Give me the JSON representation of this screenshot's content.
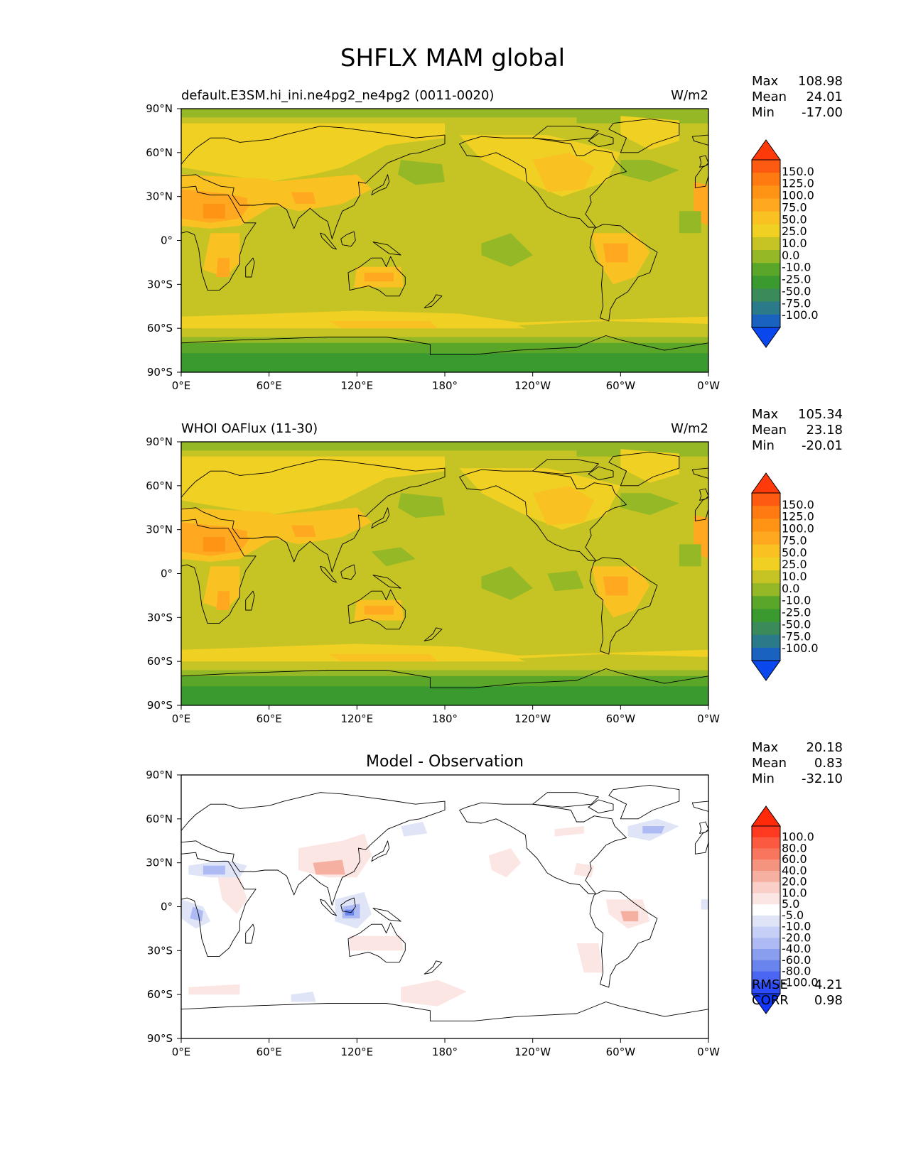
{
  "figure": {
    "title": "SHFLX MAM global",
    "lat_ticks": [
      "90°N",
      "60°N",
      "30°N",
      "0°",
      "30°S",
      "60°S",
      "90°S"
    ],
    "lon_ticks": [
      "0°E",
      "60°E",
      "120°E",
      "180°",
      "120°W",
      "60°W",
      "0°W"
    ]
  },
  "panels": [
    {
      "id": "test",
      "left_title": "default.E3SM.hi_ini.ne4pg2_ne4pg2 (0011-0020)",
      "center_title": "",
      "units": "W/m2",
      "stats": [
        {
          "label": "Max",
          "value": "108.98"
        },
        {
          "label": "Mean",
          "value": "24.01"
        },
        {
          "label": "Min",
          "value": "-17.00"
        }
      ],
      "colorbar": {
        "labels": [
          "150.0",
          "125.0",
          "100.0",
          "75.0",
          "50.0",
          "25.0",
          "10.0",
          "0.0",
          "-10.0",
          "-25.0",
          "-50.0",
          "-75.0",
          "-100.0"
        ],
        "colors": [
          "#ff3a0a",
          "#ff5a12",
          "#ff7a10",
          "#ff9414",
          "#ffa820",
          "#f9c222",
          "#f0d023",
          "#c6c424",
          "#94b826",
          "#5aa628",
          "#3a9a30",
          "#3a8a5a",
          "#2a7a8a",
          "#1a62c0",
          "#0a48ee"
        ]
      },
      "field": "model",
      "footer": []
    },
    {
      "id": "reference",
      "left_title": "WHOI OAFlux (11-30)",
      "center_title": "",
      "units": "W/m2",
      "stats": [
        {
          "label": "Max",
          "value": "105.34"
        },
        {
          "label": "Mean",
          "value": "23.18"
        },
        {
          "label": "Min",
          "value": "-20.01"
        }
      ],
      "colorbar": {
        "labels": [
          "150.0",
          "125.0",
          "100.0",
          "75.0",
          "50.0",
          "25.0",
          "10.0",
          "0.0",
          "-10.0",
          "-25.0",
          "-50.0",
          "-75.0",
          "-100.0"
        ],
        "colors": [
          "#ff3a0a",
          "#ff5a12",
          "#ff7a10",
          "#ff9414",
          "#ffa820",
          "#f9c222",
          "#f0d023",
          "#c6c424",
          "#94b826",
          "#5aa628",
          "#3a9a30",
          "#3a8a5a",
          "#2a7a8a",
          "#1a62c0",
          "#0a48ee"
        ]
      },
      "field": "obs",
      "footer": []
    },
    {
      "id": "diff",
      "left_title": "",
      "center_title": "Model - Observation",
      "units": "",
      "stats": [
        {
          "label": "Max",
          "value": "20.18"
        },
        {
          "label": "Mean",
          "value": "0.83"
        },
        {
          "label": "Min",
          "value": "-32.10"
        }
      ],
      "colorbar": {
        "labels": [
          "100.0",
          "80.0",
          "60.0",
          "40.0",
          "20.0",
          "10.0",
          "5.0",
          "-5.0",
          "-10.0",
          "-20.0",
          "-40.0",
          "-60.0",
          "-80.0",
          "-100.0"
        ],
        "colors": [
          "#ff2a0a",
          "#ff3a20",
          "#fb5a40",
          "#f8765e",
          "#f5947e",
          "#f6b0a2",
          "#f9cfc8",
          "#fbe6e3",
          "#ffffff",
          "#dfe4f7",
          "#c6d0f6",
          "#adbaf4",
          "#8a9ef0",
          "#6a84ee",
          "#4a66f2",
          "#2e4cf6",
          "#1236fb"
        ]
      },
      "field": "diff",
      "footer": [
        {
          "label": "RMSE",
          "value": "4.21"
        },
        {
          "label": "CORR",
          "value": "0.98"
        }
      ]
    }
  ]
}
